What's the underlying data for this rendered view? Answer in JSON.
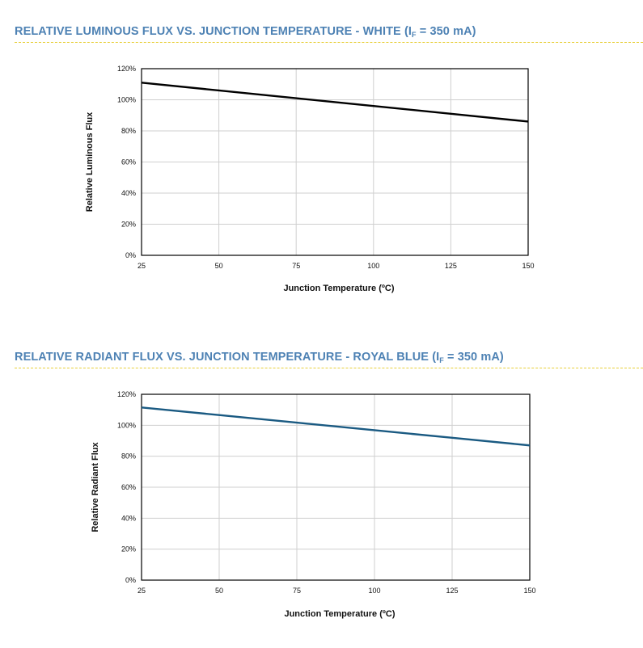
{
  "sections": [
    {
      "title_pre": "RELATIVE LUMINOUS FLUX VS. JUNCTION TEMPERATURE - WHITE (I",
      "title_sub": "F",
      "title_post": " = 350 mA)"
    },
    {
      "title_pre": "RELATIVE RADIANT FLUX VS. JUNCTION TEMPERATURE - ROYAL BLUE (I",
      "title_sub": "F",
      "title_post": " = 350 mA)"
    }
  ],
  "colors": {
    "title": "#4e82b4",
    "divider": "#e8cf3a",
    "series_white": "#000000",
    "series_royal_blue": "#1a5a82"
  },
  "chart_data": [
    {
      "type": "line",
      "xlabel": "Junction Temperature (ºC)",
      "ylabel": "Relative Luminous Flux",
      "xlim": [
        25,
        150
      ],
      "ylim": [
        0,
        120
      ],
      "x_ticks": [
        "25",
        "50",
        "75",
        "100",
        "125",
        "150"
      ],
      "y_ticks": [
        "0%",
        "20%",
        "40%",
        "60%",
        "80%",
        "100%",
        "120%"
      ],
      "grid": true,
      "legend": "none",
      "series": [
        {
          "color": "#000000",
          "x": [
            25,
            50,
            75,
            100,
            125,
            150
          ],
          "y": [
            111,
            106,
            101,
            96,
            91,
            86
          ]
        }
      ]
    },
    {
      "type": "line",
      "xlabel": "Junction Temperature (ºC)",
      "ylabel": "Relative Radiant Flux",
      "xlim": [
        25,
        150
      ],
      "ylim": [
        0,
        120
      ],
      "x_ticks": [
        "25",
        "50",
        "75",
        "100",
        "125",
        "150"
      ],
      "y_ticks": [
        "0%",
        "20%",
        "40%",
        "60%",
        "80%",
        "100%",
        "120%"
      ],
      "grid": true,
      "legend": "none",
      "series": [
        {
          "color": "#1a5a82",
          "x": [
            25,
            50,
            75,
            100,
            125,
            150
          ],
          "y": [
            111.5,
            106.6,
            101.7,
            96.8,
            91.9,
            87
          ]
        }
      ]
    }
  ]
}
